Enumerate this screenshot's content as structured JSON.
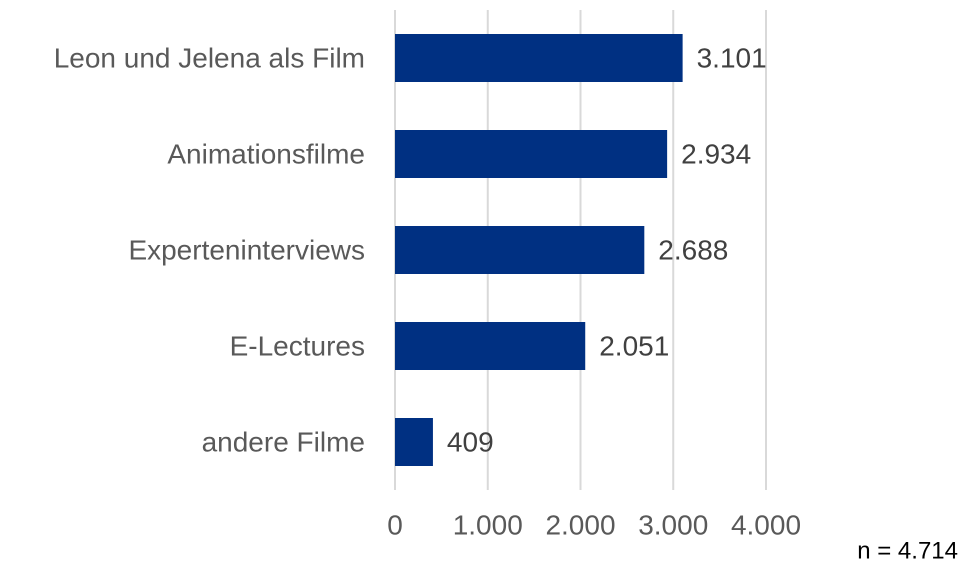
{
  "chart_data": {
    "type": "bar",
    "orientation": "horizontal",
    "categories": [
      "Leon und Jelena als Film",
      "Animationsfilme",
      "Experteninterviews",
      "E-Lectures",
      "andere Filme"
    ],
    "values": [
      3101,
      2934,
      2688,
      2051,
      409
    ],
    "value_labels": [
      "3.101",
      "2.934",
      "2.688",
      "2.051",
      "409"
    ],
    "color": "#003082",
    "xlim": [
      0,
      4000
    ],
    "xticks": [
      0,
      {
        "value": 1000,
        "label": "1.000"
      },
      {
        "value": 2000,
        "label": "2.000"
      },
      {
        "value": 3000,
        "label": "3.000"
      },
      {
        "value": 4000,
        "label": "4.000"
      }
    ],
    "grid": true,
    "annotation": "n = 4.714"
  }
}
